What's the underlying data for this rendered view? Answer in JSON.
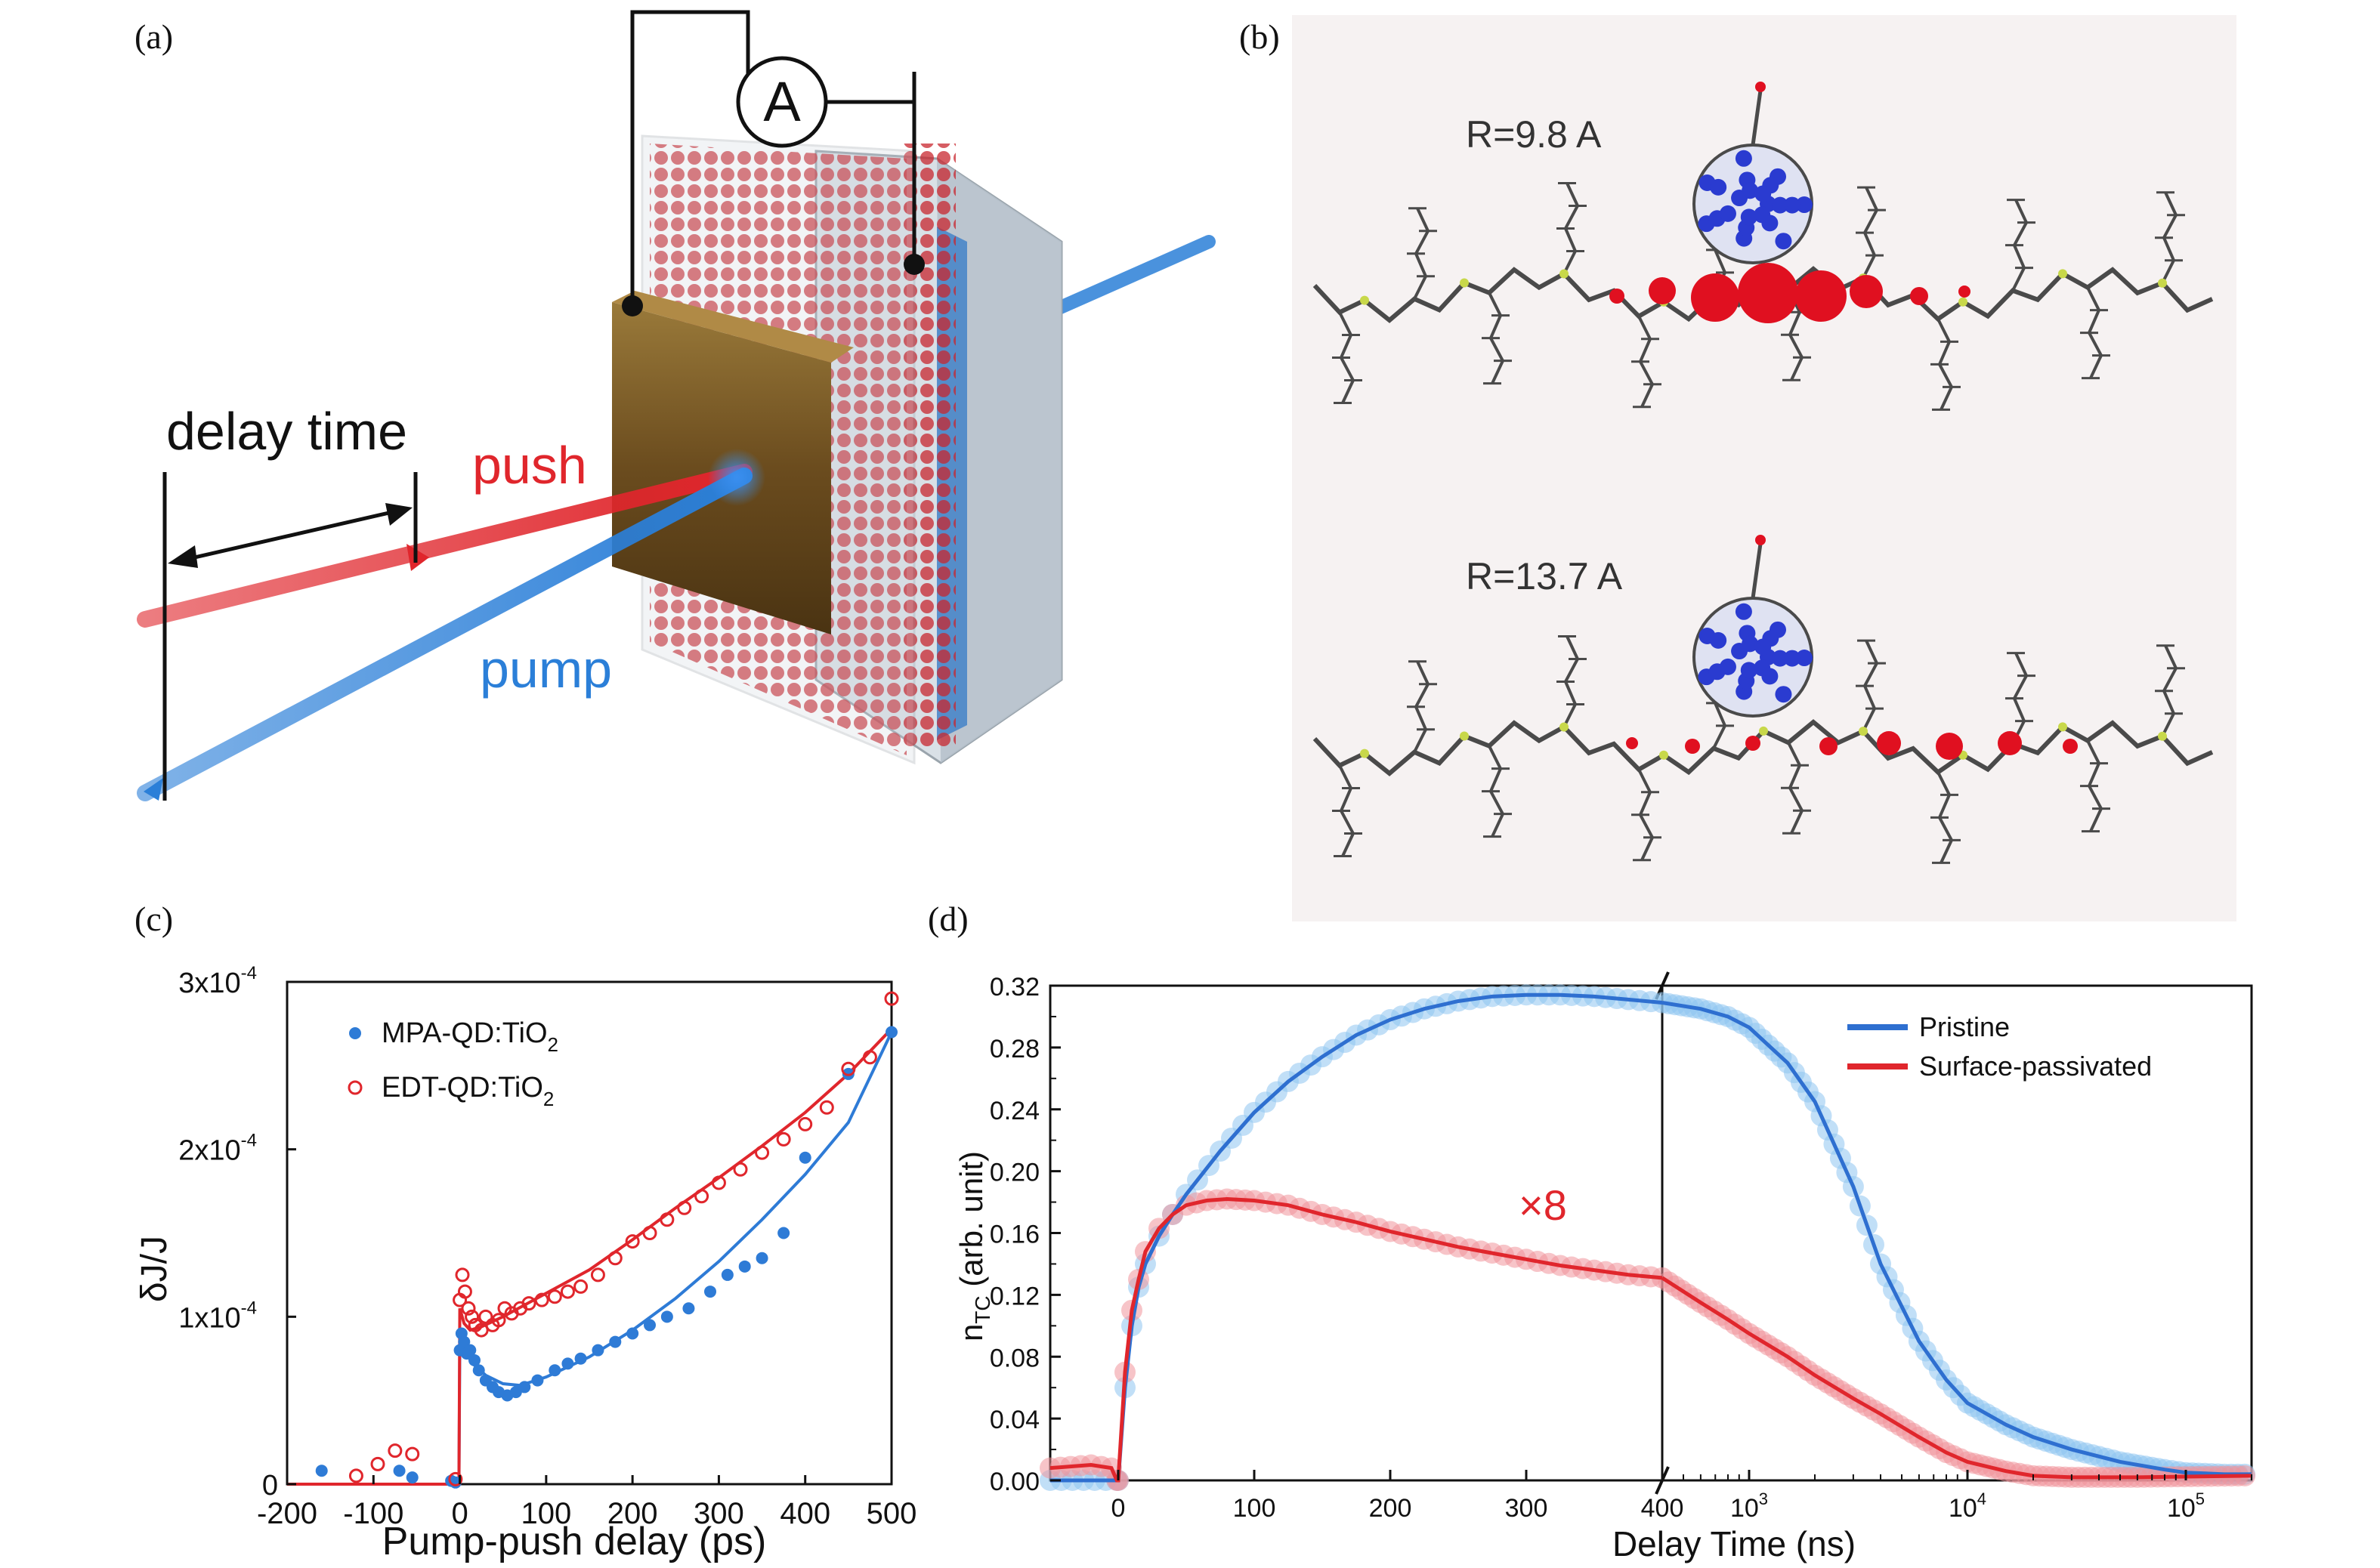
{
  "panels": {
    "a": {
      "letter": "(a)",
      "meter_label": "A",
      "delay_label": "delay time",
      "push_label": "push",
      "pump_label": "pump",
      "colors": {
        "push": "#e0262c",
        "pump": "#2b7fd8",
        "arrow": "#111111"
      }
    },
    "b": {
      "letter": "(b)",
      "top_label": "R=9.8 A",
      "bottom_label": "R=13.7 A",
      "colors": {
        "polymer": "#4a4a4a",
        "sulfur": "#c8d84a",
        "charge_hole": "#e01020",
        "charge_electron": "#2a3bd0"
      }
    },
    "c": {
      "letter": "(c)"
    },
    "d": {
      "letter": "(d)",
      "break_tick": "400"
    }
  },
  "chart_data": [
    {
      "id": "c",
      "type": "scatter",
      "title": "",
      "xlabel": "Pump-push delay (ps)",
      "ylabel": "δJ/J",
      "xlim": [
        -200,
        500
      ],
      "ylim": [
        0,
        0.0003
      ],
      "x_ticks": [
        "-200",
        "-100",
        "0",
        "100",
        "200",
        "300",
        "400",
        "500"
      ],
      "y_ticks": [
        {
          "value": 0,
          "mantissa": "0",
          "exp": ""
        },
        {
          "value": 0.0001,
          "mantissa": "1x10",
          "exp": "-4"
        },
        {
          "value": 0.0002,
          "mantissa": "2x10",
          "exp": "-4"
        },
        {
          "value": 0.0003,
          "mantissa": "3x10",
          "exp": "-4"
        }
      ],
      "legend_position": "top-left",
      "series": [
        {
          "name": "MPA-QD:TiO2",
          "legend_text": "MPA-QD:TiO",
          "legend_sub": "2",
          "marker": "filled-circle",
          "color": "#2e7bd6",
          "points": [
            [
              -160,
              8e-06
            ],
            [
              -70,
              8e-06
            ],
            [
              -55,
              4e-06
            ],
            [
              -10,
              2e-06
            ],
            [
              -5,
              1e-06
            ],
            [
              0,
              8e-05
            ],
            [
              2,
              9e-05
            ],
            [
              5,
              8.5e-05
            ],
            [
              8,
              7.8e-05
            ],
            [
              12,
              8e-05
            ],
            [
              17,
              7.4e-05
            ],
            [
              22,
              6.8e-05
            ],
            [
              30,
              6.2e-05
            ],
            [
              38,
              5.8e-05
            ],
            [
              45,
              5.5e-05
            ],
            [
              55,
              5.3e-05
            ],
            [
              65,
              5.5e-05
            ],
            [
              75,
              5.8e-05
            ],
            [
              90,
              6.2e-05
            ],
            [
              110,
              6.8e-05
            ],
            [
              125,
              7.2e-05
            ],
            [
              140,
              7.5e-05
            ],
            [
              160,
              8e-05
            ],
            [
              180,
              8.5e-05
            ],
            [
              200,
              9e-05
            ],
            [
              220,
              9.5e-05
            ],
            [
              240,
              0.0001
            ],
            [
              265,
              0.000105
            ],
            [
              290,
              0.000115
            ],
            [
              310,
              0.000125
            ],
            [
              330,
              0.00013
            ],
            [
              350,
              0.000135
            ],
            [
              375,
              0.00015
            ],
            [
              400,
              0.000195
            ],
            [
              450,
              0.000245
            ],
            [
              500,
              0.00027
            ]
          ],
          "fit": [
            [
              -200,
              0
            ],
            [
              -1,
              0
            ],
            [
              0,
              8.5e-05
            ],
            [
              5,
              8e-05
            ],
            [
              15,
              7.2e-05
            ],
            [
              30,
              6.5e-05
            ],
            [
              50,
              6e-05
            ],
            [
              70,
              5.9e-05
            ],
            [
              100,
              6.4e-05
            ],
            [
              150,
              7.6e-05
            ],
            [
              200,
              9.2e-05
            ],
            [
              250,
              0.000111
            ],
            [
              300,
              0.000133
            ],
            [
              350,
              0.000158
            ],
            [
              400,
              0.000185
            ],
            [
              450,
              0.000216
            ],
            [
              500,
              0.00027
            ]
          ]
        },
        {
          "name": "EDT-QD:TiO2",
          "legend_text": "EDT-QD:TiO",
          "legend_sub": "2",
          "marker": "open-circle",
          "color": "#e0262c",
          "points": [
            [
              -120,
              5e-06
            ],
            [
              -95,
              1.2e-05
            ],
            [
              -75,
              2e-05
            ],
            [
              -55,
              1.8e-05
            ],
            [
              -5,
              3e-06
            ],
            [
              0,
              0.00011
            ],
            [
              3,
              0.000125
            ],
            [
              6,
              0.000115
            ],
            [
              10,
              0.000105
            ],
            [
              14,
              0.0001
            ],
            [
              18,
              9.5e-05
            ],
            [
              25,
              9.2e-05
            ],
            [
              30,
              0.0001
            ],
            [
              38,
              9.5e-05
            ],
            [
              45,
              9.8e-05
            ],
            [
              52,
              0.000105
            ],
            [
              60,
              0.000102
            ],
            [
              70,
              0.000105
            ],
            [
              80,
              0.000108
            ],
            [
              95,
              0.00011
            ],
            [
              110,
              0.000112
            ],
            [
              125,
              0.000115
            ],
            [
              140,
              0.000118
            ],
            [
              160,
              0.000125
            ],
            [
              180,
              0.000135
            ],
            [
              200,
              0.000145
            ],
            [
              220,
              0.00015
            ],
            [
              240,
              0.000158
            ],
            [
              260,
              0.000165
            ],
            [
              280,
              0.000172
            ],
            [
              300,
              0.00018
            ],
            [
              325,
              0.000188
            ],
            [
              350,
              0.000198
            ],
            [
              375,
              0.000206
            ],
            [
              400,
              0.000215
            ],
            [
              425,
              0.000225
            ],
            [
              450,
              0.000248
            ],
            [
              475,
              0.000255
            ],
            [
              500,
              0.00029
            ]
          ],
          "fit": [
            [
              -200,
              0
            ],
            [
              -1,
              0
            ],
            [
              0,
              0.000105
            ],
            [
              5,
              9.6e-05
            ],
            [
              12,
              9.2e-05
            ],
            [
              25,
              9.4e-05
            ],
            [
              50,
              0.0001
            ],
            [
              100,
              0.000114
            ],
            [
              150,
              0.000128
            ],
            [
              200,
              0.000146
            ],
            [
              250,
              0.000165
            ],
            [
              300,
              0.000183
            ],
            [
              350,
              0.000202
            ],
            [
              400,
              0.000222
            ],
            [
              450,
              0.000245
            ],
            [
              500,
              0.000272
            ]
          ]
        }
      ]
    },
    {
      "id": "d",
      "type": "line",
      "title": "",
      "xlabel": "Delay Time (ns)",
      "ylabel_main": "n",
      "ylabel_sub": "TC",
      "ylabel_rest": " (arb. unit)",
      "ylim": [
        0,
        0.32
      ],
      "y_ticks": [
        "0.00",
        "0.04",
        "0.08",
        "0.12",
        "0.16",
        "0.20",
        "0.24",
        "0.28",
        "0.32"
      ],
      "x_linear": {
        "range": [
          -50,
          400
        ],
        "ticks": [
          "0",
          "100",
          "200",
          "300"
        ]
      },
      "x_log": {
        "range": [
          400,
          200000
        ],
        "ticks": [
          {
            "value": 1000,
            "exp": "3"
          },
          {
            "value": 10000,
            "exp": "4"
          },
          {
            "value": 100000,
            "exp": "5"
          }
        ],
        "tick_base": "10"
      },
      "annotation": "×8",
      "legend_position": "top-right",
      "series": [
        {
          "name": "Pristine",
          "color": "#2e6fd0",
          "marker_color": "#8ec4f0",
          "linear": [
            [
              -50,
              0.0
            ],
            [
              -1,
              0.0
            ],
            [
              0,
              0.0
            ],
            [
              5,
              0.06
            ],
            [
              10,
              0.1
            ],
            [
              15,
              0.125
            ],
            [
              20,
              0.14
            ],
            [
              30,
              0.158
            ],
            [
              40,
              0.172
            ],
            [
              50,
              0.185
            ],
            [
              75,
              0.213
            ],
            [
              100,
              0.238
            ],
            [
              125,
              0.258
            ],
            [
              150,
              0.274
            ],
            [
              175,
              0.288
            ],
            [
              200,
              0.298
            ],
            [
              225,
              0.305
            ],
            [
              250,
              0.31
            ],
            [
              275,
              0.313
            ],
            [
              300,
              0.314
            ],
            [
              325,
              0.314
            ],
            [
              350,
              0.313
            ],
            [
              375,
              0.311
            ],
            [
              400,
              0.309
            ]
          ],
          "log": [
            [
              400,
              0.309
            ],
            [
              600,
              0.305
            ],
            [
              800,
              0.3
            ],
            [
              1000,
              0.293
            ],
            [
              1500,
              0.27
            ],
            [
              2000,
              0.245
            ],
            [
              3000,
              0.19
            ],
            [
              4000,
              0.14
            ],
            [
              6000,
              0.09
            ],
            [
              8000,
              0.065
            ],
            [
              10000,
              0.05
            ],
            [
              15000,
              0.036
            ],
            [
              20000,
              0.028
            ],
            [
              30000,
              0.02
            ],
            [
              50000,
              0.012
            ],
            [
              80000,
              0.007
            ],
            [
              100000,
              0.005
            ],
            [
              150000,
              0.004
            ],
            [
              200000,
              0.004
            ]
          ]
        },
        {
          "name": "Surface-passivated",
          "color": "#e0262c",
          "marker_color": "#f0939a",
          "linear": [
            [
              -50,
              0.008
            ],
            [
              -20,
              0.01
            ],
            [
              -5,
              0.008
            ],
            [
              -1,
              0.0
            ],
            [
              0,
              0.0
            ],
            [
              5,
              0.07
            ],
            [
              10,
              0.11
            ],
            [
              15,
              0.13
            ],
            [
              20,
              0.148
            ],
            [
              30,
              0.163
            ],
            [
              40,
              0.172
            ],
            [
              50,
              0.178
            ],
            [
              65,
              0.181
            ],
            [
              80,
              0.182
            ],
            [
              100,
              0.181
            ],
            [
              125,
              0.178
            ],
            [
              150,
              0.172
            ],
            [
              175,
              0.167
            ],
            [
              200,
              0.161
            ],
            [
              225,
              0.156
            ],
            [
              250,
              0.151
            ],
            [
              275,
              0.147
            ],
            [
              300,
              0.143
            ],
            [
              325,
              0.139
            ],
            [
              350,
              0.136
            ],
            [
              375,
              0.133
            ],
            [
              400,
              0.131
            ]
          ],
          "log": [
            [
              400,
              0.131
            ],
            [
              600,
              0.115
            ],
            [
              800,
              0.104
            ],
            [
              1000,
              0.095
            ],
            [
              1500,
              0.08
            ],
            [
              2000,
              0.068
            ],
            [
              3000,
              0.053
            ],
            [
              4000,
              0.043
            ],
            [
              6000,
              0.028
            ],
            [
              8000,
              0.018
            ],
            [
              10000,
              0.012
            ],
            [
              15000,
              0.006
            ],
            [
              20000,
              0.003
            ],
            [
              30000,
              0.002
            ],
            [
              60000,
              0.002
            ],
            [
              200000,
              0.003
            ]
          ]
        }
      ]
    }
  ]
}
